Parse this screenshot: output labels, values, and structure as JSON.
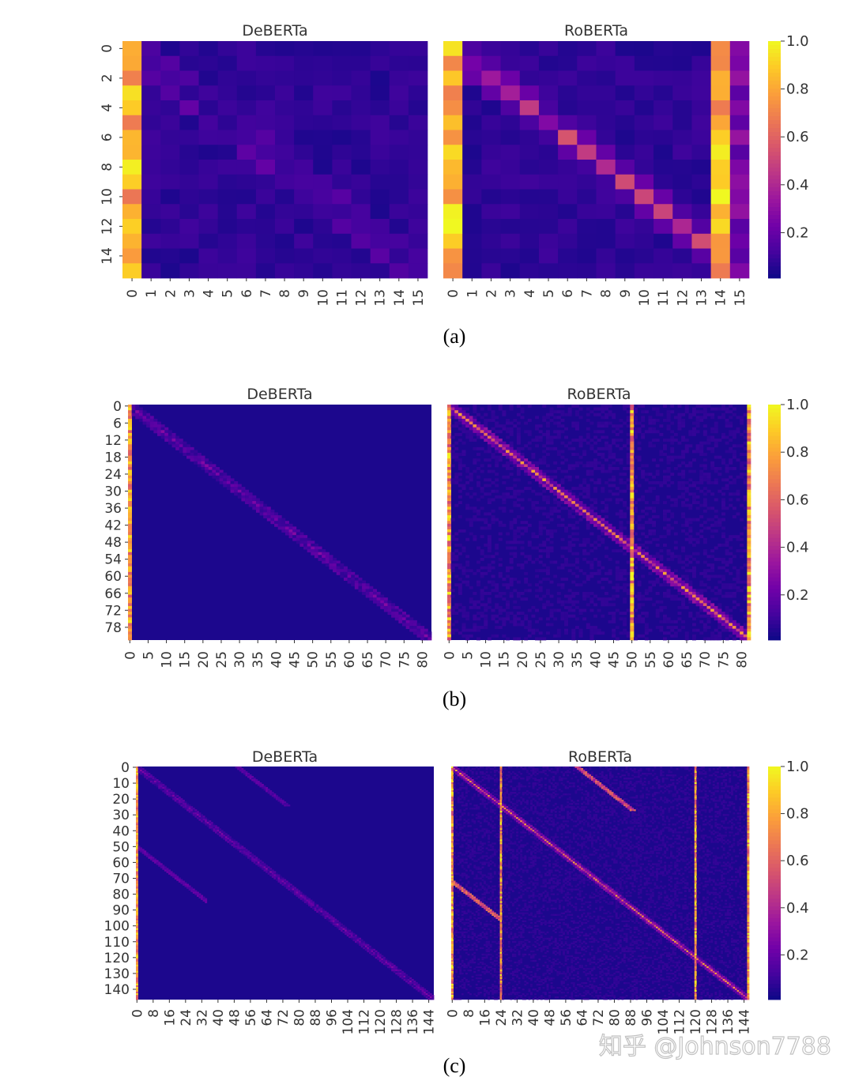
{
  "figure": {
    "colorbar": {
      "ticks": [
        "0.2",
        "0.4",
        "0.6",
        "0.8",
        "1.0"
      ],
      "tick_values": [
        0.2,
        0.4,
        0.6,
        0.8,
        1.0
      ],
      "range": [
        0.01,
        1.0
      ],
      "colormap": "plasma",
      "colors": [
        "#0d0887",
        "#46039f",
        "#7201a8",
        "#9c179e",
        "#bd3786",
        "#d8576b",
        "#ed7953",
        "#fb9f3a",
        "#fdca26",
        "#f0f921"
      ]
    },
    "watermark": "知乎 @Johnson7788"
  },
  "chart_data": [
    {
      "type": "heatmap",
      "caption": "(a)",
      "size": 16,
      "panels": [
        {
          "title": "DeBERTa",
          "model": "deberta",
          "y_ticks": [
            "0",
            "2",
            "4",
            "6",
            "8",
            "10",
            "12",
            "14"
          ],
          "x_ticks": [
            "0",
            "1",
            "2",
            "3",
            "4",
            "5",
            "6",
            "7",
            "8",
            "9",
            "10",
            "11",
            "12",
            "13",
            "14",
            "15"
          ]
        },
        {
          "title": "RoBERTa",
          "model": "roberta",
          "y_ticks": [],
          "x_ticks": [
            "0",
            "1",
            "2",
            "3",
            "4",
            "5",
            "6",
            "7",
            "8",
            "9",
            "10",
            "11",
            "12",
            "13",
            "14",
            "15"
          ],
          "sink_columns": [
            0,
            14
          ]
        }
      ]
    },
    {
      "type": "heatmap",
      "caption": "(b)",
      "size": 83,
      "panels": [
        {
          "title": "DeBERTa",
          "model": "deberta",
          "y_ticks": [
            "0",
            "6",
            "12",
            "18",
            "24",
            "30",
            "36",
            "42",
            "48",
            "54",
            "60",
            "66",
            "72",
            "78"
          ],
          "x_ticks": [
            "0",
            "5",
            "10",
            "15",
            "20",
            "25",
            "30",
            "35",
            "40",
            "45",
            "50",
            "55",
            "60",
            "65",
            "70",
            "75",
            "80"
          ]
        },
        {
          "title": "RoBERTa",
          "model": "roberta",
          "y_ticks": [],
          "x_ticks": [
            "0",
            "5",
            "10",
            "15",
            "20",
            "25",
            "30",
            "35",
            "40",
            "45",
            "50",
            "55",
            "60",
            "65",
            "70",
            "75",
            "80"
          ],
          "sink_columns": [
            0,
            50,
            82
          ]
        }
      ]
    },
    {
      "type": "heatmap",
      "caption": "(c)",
      "size": 147,
      "panels": [
        {
          "title": "DeBERTa",
          "model": "deberta",
          "y_ticks": [
            "0",
            "10",
            "20",
            "30",
            "40",
            "50",
            "60",
            "70",
            "80",
            "90",
            "100",
            "110",
            "120",
            "130",
            "140"
          ],
          "x_ticks": [
            "0",
            "8",
            "16",
            "24",
            "32",
            "40",
            "48",
            "56",
            "64",
            "72",
            "80",
            "88",
            "96",
            "104",
            "112",
            "120",
            "128",
            "136",
            "144"
          ]
        },
        {
          "title": "RoBERTa",
          "model": "roberta",
          "y_ticks": [],
          "x_ticks": [
            "0",
            "8",
            "16",
            "24",
            "32",
            "40",
            "48",
            "56",
            "64",
            "72",
            "80",
            "88",
            "96",
            "104",
            "112",
            "120",
            "128",
            "136",
            "144"
          ],
          "sink_columns": [
            0,
            24,
            120,
            146
          ]
        }
      ]
    }
  ]
}
